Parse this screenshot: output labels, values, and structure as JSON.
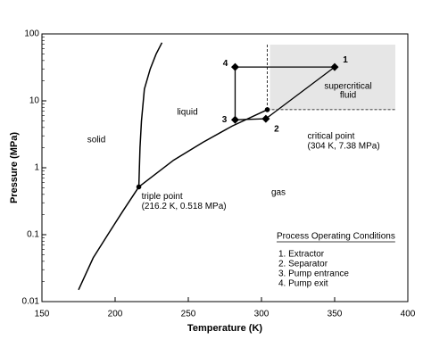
{
  "chart_data": {
    "type": "line",
    "x_label": "Temperature (K)",
    "y_label": "Pressure (MPa)",
    "xlim": [
      150,
      400
    ],
    "ylim": [
      0.01,
      100
    ],
    "log_y": true,
    "xticks": [
      150,
      200,
      250,
      300,
      350,
      400
    ],
    "yticks": [
      0.01,
      0.1,
      1,
      10,
      100
    ],
    "series": [
      {
        "color": "#000000",
        "x": [
          175,
          185,
          195,
          205,
          216.2
        ],
        "values": [
          0.015,
          0.045,
          0.1,
          0.22,
          0.518
        ]
      },
      {
        "color": "#000000",
        "x": [
          216.2,
          217,
          218,
          220,
          224,
          228,
          232
        ],
        "values": [
          0.518,
          2,
          5,
          15,
          30,
          50,
          74
        ]
      },
      {
        "color": "#000000",
        "x": [
          216.2,
          240,
          260,
          280,
          304
        ],
        "values": [
          0.518,
          1.3,
          2.4,
          4.2,
          7.38
        ]
      }
    ],
    "points": [
      {
        "x": 216.2,
        "y": 0.518,
        "label": [
          "triple point",
          "(216.2 K, 0.518 MPa)"
        ]
      },
      {
        "x": 304,
        "y": 7.38,
        "label": [
          "critical point",
          "(304 K, 7.38 MPa)"
        ]
      }
    ],
    "process": {
      "x": [
        350,
        303,
        282,
        282
      ],
      "values": [
        32,
        5.4,
        5.2,
        32
      ],
      "labels": [
        "1",
        "2",
        "3",
        "4"
      ],
      "color": "#000000"
    },
    "region_labels": [
      "solid",
      "liquid",
      "gas"
    ],
    "supercritical_label": [
      "supercritical",
      "fluid"
    ],
    "legend": {
      "title": "Process Operating Conditions",
      "items": [
        "1.  Extractor",
        "2.  Separator",
        "3.  Pump entrance",
        "4.  Pump exit"
      ]
    }
  }
}
